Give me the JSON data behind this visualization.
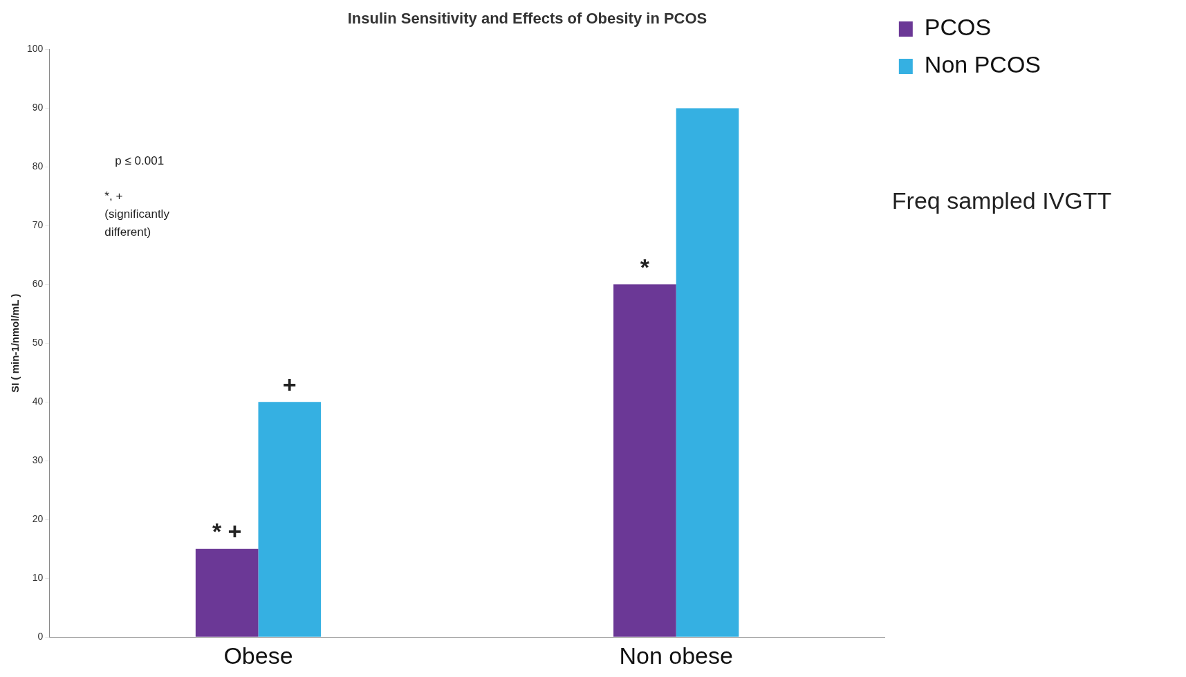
{
  "chart_data": {
    "type": "bar",
    "title": "Insulin Sensitivity and Effects of Obesity in PCOS",
    "ylabel": "SI ( min-1/nmol/mL )",
    "categories": [
      "Obese",
      "Non obese"
    ],
    "series": [
      {
        "name": "PCOS",
        "color": "#6b3896",
        "values": [
          15,
          60
        ]
      },
      {
        "name": "Non PCOS",
        "color": "#35b0e2",
        "values": [
          40,
          90
        ]
      }
    ],
    "ylim": [
      0,
      100
    ],
    "yticks": [
      0,
      10,
      20,
      30,
      40,
      50,
      60,
      70,
      80,
      90,
      100
    ],
    "grid": false,
    "legend": "top right",
    "annotations": [
      "p ≤ 0.001",
      "*, + (significantly different)",
      "Freq sampled IVGTT",
      {
        "text": "* +",
        "x": "Obese",
        "y": 15
      },
      {
        "text": "+",
        "x": "Obese",
        "y": 40
      },
      {
        "text": "*",
        "x": "Non obese",
        "y": 60
      }
    ]
  }
}
